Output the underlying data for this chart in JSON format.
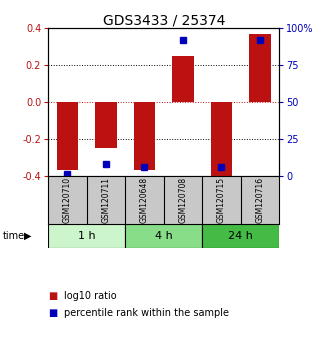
{
  "title": "GDS3433 / 25374",
  "samples": [
    "GSM120710",
    "GSM120711",
    "GSM120648",
    "GSM120708",
    "GSM120715",
    "GSM120716"
  ],
  "log10_ratio": [
    -0.37,
    -0.25,
    -0.37,
    0.25,
    -0.4,
    0.37
  ],
  "percentile_rank": [
    1,
    8,
    6,
    92,
    6,
    92
  ],
  "ylim_left": [
    -0.4,
    0.4
  ],
  "ylim_right": [
    0,
    100
  ],
  "yticks_left": [
    -0.4,
    -0.2,
    0.0,
    0.2,
    0.4
  ],
  "yticks_right": [
    0,
    25,
    50,
    75,
    100
  ],
  "ytick_labels_right": [
    "0",
    "25",
    "50",
    "75",
    "100%"
  ],
  "time_groups": [
    {
      "label": "1 h",
      "count": 2,
      "color": "#ccf5cc"
    },
    {
      "label": "4 h",
      "count": 2,
      "color": "#88dd88"
    },
    {
      "label": "24 h",
      "count": 2,
      "color": "#44bb44"
    }
  ],
  "bar_color_red": "#bb1111",
  "dot_color_blue": "#0000bb",
  "bar_width": 0.55,
  "dot_size": 5,
  "background_color": "#ffffff",
  "plot_bg_color": "#ffffff",
  "zero_line_color": "#cc1111",
  "title_fontsize": 10,
  "tick_fontsize": 7,
  "sample_box_color": "#c8c8c8",
  "legend_red_label": "log10 ratio",
  "legend_blue_label": "percentile rank within the sample",
  "legend_fontsize": 7,
  "legend_marker_size": 7
}
